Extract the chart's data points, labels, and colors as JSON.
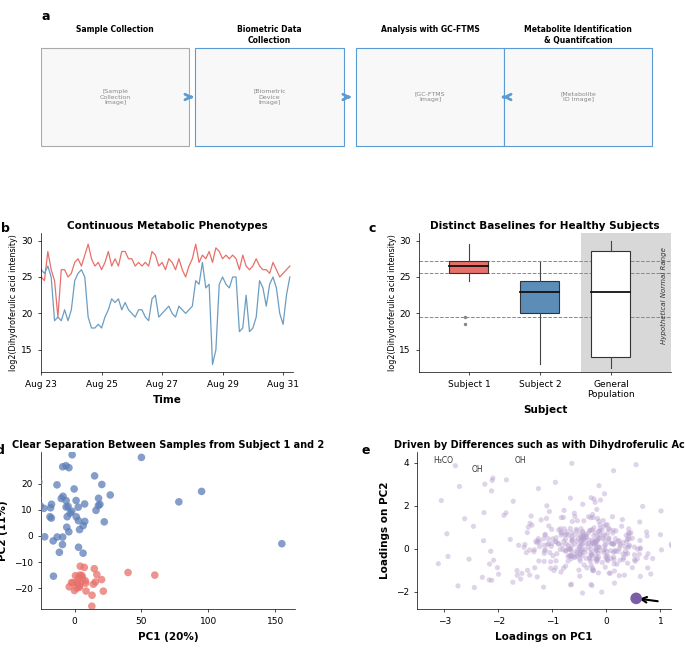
{
  "panel_b": {
    "title": "Continuous Metabolic Phenotypes",
    "xlabel": "Time",
    "ylabel": "log2(Dihydroferulic acid intensity)",
    "ylim": [
      12,
      31
    ],
    "xlim": [
      0,
      75
    ],
    "xtick_labels": [
      "Aug 23",
      "Aug 25",
      "Aug 27",
      "Aug 29",
      "Aug 31"
    ],
    "xtick_pos": [
      0,
      18,
      36,
      54,
      72
    ],
    "red_line": [
      25.0,
      24.5,
      28.5,
      26.0,
      24.5,
      19.5,
      26.0,
      26.0,
      25.0,
      25.5,
      27.0,
      27.5,
      26.5,
      28.0,
      29.5,
      27.5,
      26.5,
      27.0,
      26.0,
      27.0,
      28.5,
      26.5,
      27.5,
      26.5,
      28.5,
      28.5,
      27.5,
      27.5,
      26.5,
      27.0,
      26.5,
      27.0,
      26.5,
      28.5,
      28.0,
      26.5,
      27.0,
      26.0,
      27.5,
      27.0,
      26.0,
      27.5,
      26.0,
      25.0,
      26.5,
      27.5,
      29.5,
      27.0,
      28.0,
      27.5,
      28.5,
      27.0,
      29.0,
      28.5,
      27.5,
      28.0,
      27.5,
      28.0,
      27.5,
      26.0,
      28.0,
      26.5,
      26.0,
      26.5,
      27.5,
      26.5,
      26.0,
      26.0,
      25.5,
      27.0,
      26.0,
      25.0,
      25.5,
      26.0,
      26.5
    ],
    "blue_line": [
      26.0,
      25.5,
      26.5,
      25.0,
      19.0,
      19.5,
      19.0,
      20.5,
      19.0,
      20.5,
      24.5,
      25.5,
      26.0,
      25.0,
      19.5,
      18.0,
      18.0,
      18.5,
      18.0,
      19.5,
      20.5,
      22.0,
      21.5,
      22.0,
      20.5,
      21.5,
      20.5,
      20.0,
      19.5,
      20.5,
      20.5,
      19.5,
      19.0,
      22.0,
      22.5,
      19.5,
      20.0,
      20.5,
      21.0,
      20.0,
      19.5,
      21.0,
      20.5,
      20.0,
      20.5,
      21.0,
      24.5,
      24.0,
      27.0,
      23.5,
      24.0,
      13.0,
      15.0,
      24.0,
      25.0,
      24.0,
      23.5,
      25.0,
      25.0,
      17.5,
      18.0,
      22.5,
      17.5,
      18.0,
      19.5,
      24.5,
      23.5,
      21.0,
      24.0,
      25.0,
      23.5,
      20.0,
      18.5,
      22.5,
      25.0
    ],
    "red_color": "#E8706A",
    "blue_color": "#6B9DC2"
  },
  "panel_c": {
    "title": "Distinct Baselines for Healthy Subjects",
    "xlabel": "Subject",
    "ylabel": "log2(Dihydroferulic acid intensity)",
    "ylim": [
      12,
      31
    ],
    "subject1_median": 26.5,
    "subject1_q1": 25.5,
    "subject1_q3": 27.2,
    "subject1_whisker_low": 24.5,
    "subject1_whisker_high": 29.5,
    "subject1_outliers": [
      19.5,
      18.5
    ],
    "subject2_median": 23.0,
    "subject2_q1": 20.0,
    "subject2_q3": 24.5,
    "subject2_whisker_low": 13.0,
    "subject2_whisker_high": 27.0,
    "subject2_outliers": [],
    "genpop_median": 23.0,
    "genpop_q1": 14.0,
    "genpop_q3": 28.5,
    "genpop_whisker_low": 12.5,
    "genpop_whisker_high": 30.0,
    "dashed_lines": [
      27.2,
      25.5,
      19.5
    ],
    "subject1_color": "#E8706A",
    "subject2_color": "#5B8DB8",
    "genpop_color": "#ffffff",
    "genpop_bg": "#D3D3D3",
    "xtick_labels": [
      "Subject 1",
      "Subject 2",
      "General\nPopulation"
    ]
  },
  "panel_d": {
    "title": "Clear Separation Between Samples from Subject 1 and 2",
    "xlabel": "PC1 (20%)",
    "ylabel": "PC2 (11%)",
    "xlim": [
      -25,
      165
    ],
    "ylim": [
      -28,
      32
    ],
    "yticks": [
      -20,
      -10,
      0,
      10,
      20
    ],
    "xticks": [
      0,
      50,
      100,
      150
    ],
    "blue_color": "#5B7DB8",
    "red_color": "#E8706A"
  },
  "panel_e": {
    "title": "Driven by Differences such as with Dihydroferulic Acid",
    "xlabel": "Loadings on PC1",
    "ylabel": "Loadings on PC2",
    "xlim": [
      -3.5,
      1.2
    ],
    "ylim": [
      -2.8,
      4.5
    ],
    "xticks": [
      -3,
      -2,
      -1,
      0,
      1
    ],
    "yticks": [
      -2,
      0,
      2,
      4
    ],
    "scatter_color": "#B8A0D0",
    "highlight_color": "#7B5EA7",
    "highlight_x": 0.55,
    "highlight_y": -2.3,
    "arrow_color": "#000000"
  },
  "panel_a_text": {
    "col1_title": "Sample Collection",
    "col2_title": "Biometric Data\nCollection",
    "col3_title": "Analysis with GC-FTMS",
    "col4_title": "Metabolite Identification\n& Quantifcation"
  },
  "background_color": "#ffffff"
}
